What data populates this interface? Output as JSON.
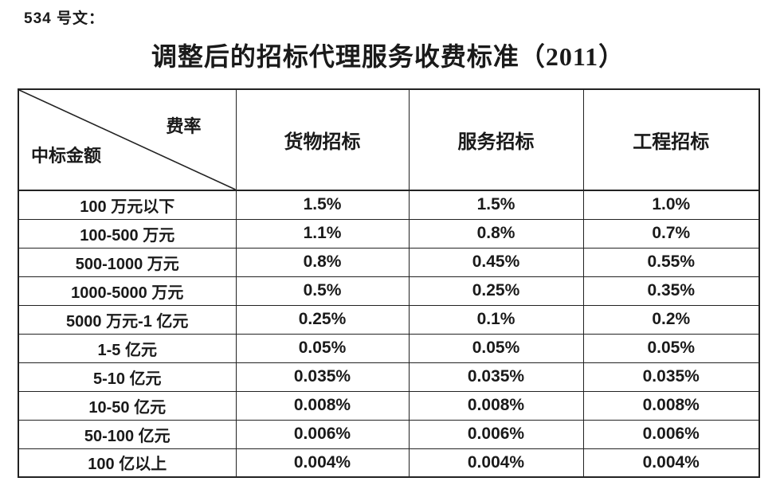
{
  "document": {
    "doc_number": "534 号文：",
    "title": "调整后的招标代理服务收费标准（2011）"
  },
  "table": {
    "corner": {
      "top_right": "费率",
      "bottom_left": "中标金额"
    },
    "columns": [
      "货物招标",
      "服务招标",
      "工程招标"
    ],
    "rows": [
      {
        "label": "100 万元以下",
        "values": [
          "1.5%",
          "1.5%",
          "1.0%"
        ]
      },
      {
        "label": "100-500 万元",
        "values": [
          "1.1%",
          "0.8%",
          "0.7%"
        ]
      },
      {
        "label": "500-1000 万元",
        "values": [
          "0.8%",
          "0.45%",
          "0.55%"
        ]
      },
      {
        "label": "1000-5000 万元",
        "values": [
          "0.5%",
          "0.25%",
          "0.35%"
        ]
      },
      {
        "label": "5000 万元-1 亿元",
        "values": [
          "0.25%",
          "0.1%",
          "0.2%"
        ]
      },
      {
        "label": "1-5 亿元",
        "values": [
          "0.05%",
          "0.05%",
          "0.05%"
        ]
      },
      {
        "label": "5-10 亿元",
        "values": [
          "0.035%",
          "0.035%",
          "0.035%"
        ]
      },
      {
        "label": "10-50 亿元",
        "values": [
          "0.008%",
          "0.008%",
          "0.008%"
        ]
      },
      {
        "label": "50-100 亿元",
        "values": [
          "0.006%",
          "0.006%",
          "0.006%"
        ]
      },
      {
        "label": "100 亿以上",
        "values": [
          "0.004%",
          "0.004%",
          "0.004%"
        ]
      }
    ]
  },
  "colors": {
    "text": "#1a1a1a",
    "border": "#222222",
    "background": "#ffffff"
  }
}
